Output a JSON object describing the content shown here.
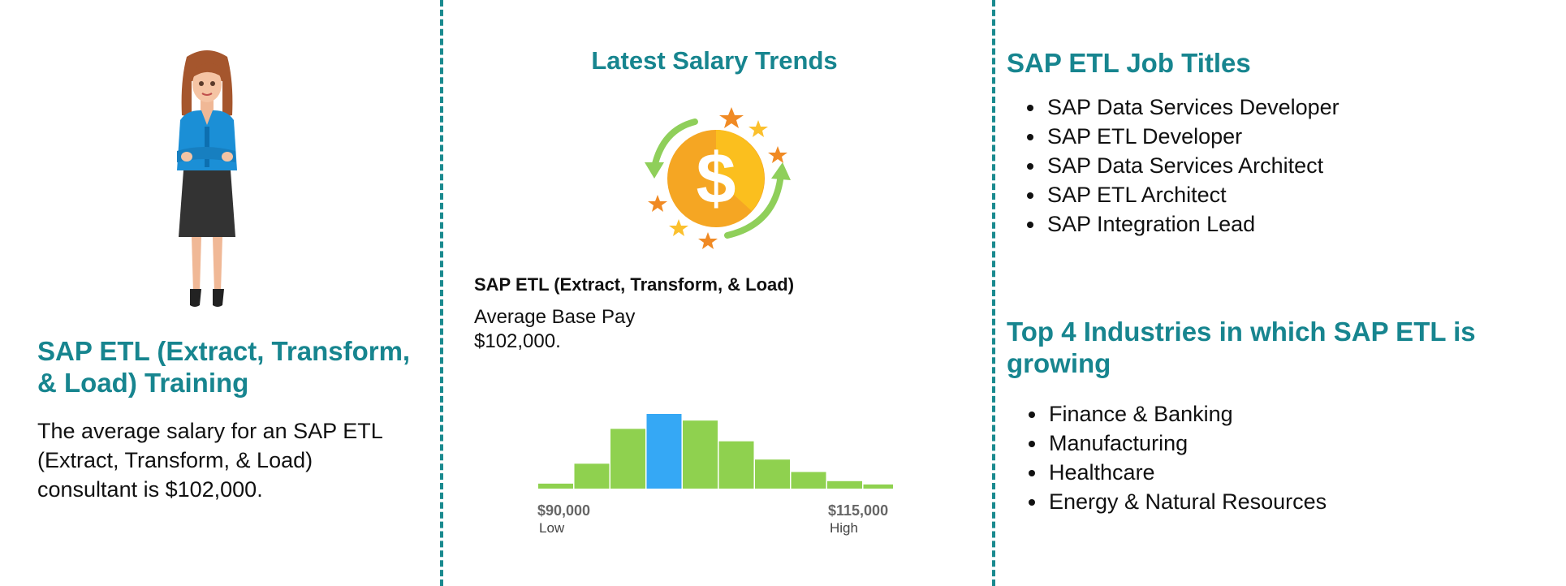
{
  "left": {
    "title": "SAP ETL (Extract, Transform, & Load) Training",
    "text": "The average salary for an SAP ETL (Extract, Transform, & Load) consultant is $102,000."
  },
  "middle": {
    "title": "Latest Salary Trends",
    "subtitle": "SAP ETL (Extract, Transform, & Load)",
    "average_pay": "Average Base Pay $102,000.",
    "icon": "dollar-cycle-icon"
  },
  "chart_data": {
    "type": "bar",
    "values": [
      6,
      30,
      72,
      90,
      82,
      57,
      35,
      20,
      9,
      5
    ],
    "highlight_index": 3,
    "low_value": "$90,000",
    "low_label": "Low",
    "high_value": "$115,000",
    "high_label": "High",
    "colors": {
      "bar": "#8fd14f",
      "highlight": "#35a8f5"
    }
  },
  "right": {
    "job_titles_heading": "SAP ETL Job Titles",
    "job_titles": [
      "SAP Data Services Developer",
      "SAP ETL Developer",
      "SAP Data Services Architect",
      "SAP ETL Architect",
      "SAP Integration Lead"
    ],
    "industries_heading": "Top 4 Industries in which SAP ETL is growing",
    "industries": [
      "Finance & Banking",
      "Manufacturing",
      "Healthcare",
      "Energy & Natural Resources"
    ]
  },
  "colors": {
    "accent": "#17858f",
    "divider": "#1a8a8f"
  }
}
